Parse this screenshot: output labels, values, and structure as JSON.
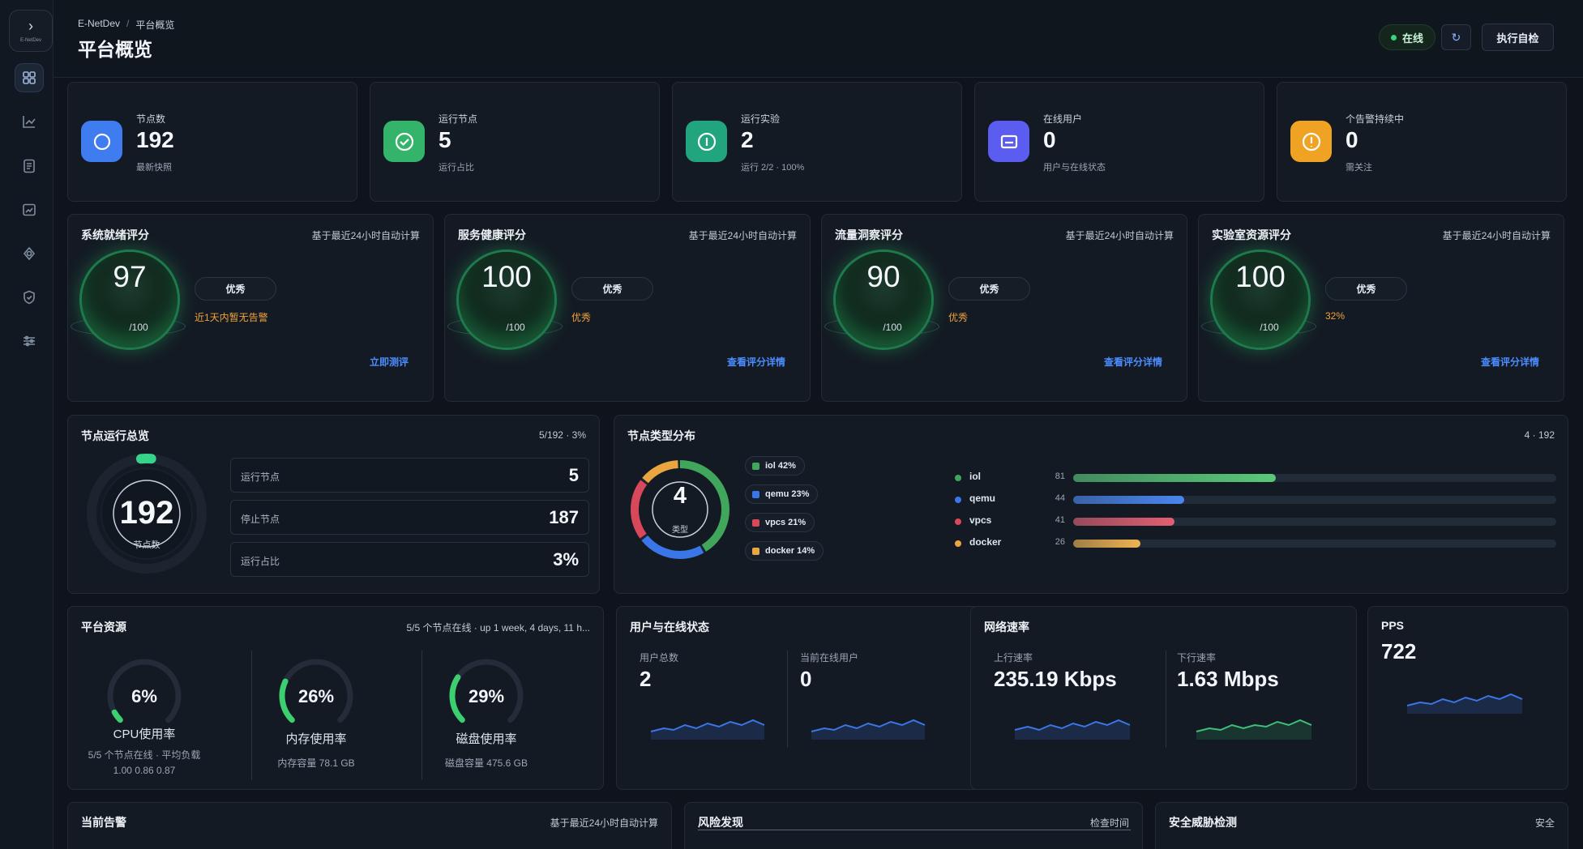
{
  "rail": {
    "logo_text": "E-NetDev"
  },
  "header": {
    "breadcrumb_root": "E-NetDev",
    "breadcrumb_sep": "/",
    "breadcrumb_current": "平台概览",
    "title": "平台概览",
    "status_label": "在线",
    "refresh_icon_glyph": "↻",
    "self_check_label": "执行自检"
  },
  "stats": [
    {
      "label": "节点数",
      "value": "192",
      "sub": "最新快照",
      "color": "#3f7cf0",
      "icon": "circle-icon"
    },
    {
      "label": "运行节点",
      "value": "5",
      "sub": "运行占比",
      "color": "#34b46a",
      "icon": "check-icon"
    },
    {
      "label": "运行实验",
      "value": "2",
      "sub": "运行 2/2 · 100%",
      "color": "#21a57e",
      "icon": "info-icon"
    },
    {
      "label": "在线用户",
      "value": "0",
      "sub": "用户与在线状态",
      "color": "#5b5cf0",
      "icon": "monitor-icon"
    },
    {
      "label": "个告警持续中",
      "value": "0",
      "sub": "需关注",
      "color": "#f0a323",
      "icon": "alert-icon"
    }
  ],
  "scores": [
    {
      "title": "系统就绪评分",
      "right": "基于最近24小时自动计算",
      "value": "97",
      "max": "/100",
      "grade": "优秀",
      "note": "近1天内暂无告警",
      "link": "立即测评"
    },
    {
      "title": "服务健康评分",
      "right": "基于最近24小时自动计算",
      "value": "100",
      "max": "/100",
      "grade": "优秀",
      "note": "优秀",
      "link": "查看评分详情"
    },
    {
      "title": "流量洞察评分",
      "right": "基于最近24小时自动计算",
      "value": "90",
      "max": "/100",
      "grade": "优秀",
      "note": "优秀",
      "link": "查看评分详情"
    },
    {
      "title": "实验室资源评分",
      "right": "基于最近24小时自动计算",
      "value": "100",
      "max": "/100",
      "grade": "优秀",
      "note": "32%",
      "link": "查看评分详情"
    }
  ],
  "node_overview": {
    "title": "节点运行总览",
    "right": "5/192 · 3%",
    "total": "192",
    "total_label": "节点数",
    "running_fraction": 0.03,
    "rows": [
      {
        "label": "运行节点",
        "value": "5"
      },
      {
        "label": "停止节点",
        "value": "187"
      },
      {
        "label": "运行占比",
        "value": "3%"
      }
    ]
  },
  "node_types": {
    "title": "节点类型分布",
    "right": "4 · 192",
    "center_value": "4",
    "center_label": "类型",
    "items": [
      {
        "name": "iol",
        "count": "81",
        "pct": "42%",
        "share": 0.42,
        "color": "#3fa65b",
        "badge": "iol  42%",
        "bar_color": "#59c978"
      },
      {
        "name": "qemu",
        "count": "44",
        "pct": "23%",
        "share": 0.23,
        "color": "#3b76e8",
        "badge": "qemu  23%",
        "bar_color": "#4a86ee"
      },
      {
        "name": "vpcs",
        "count": "41",
        "pct": "21%",
        "share": 0.21,
        "color": "#d9475b",
        "badge": "vpcs  21%",
        "bar_color": "#e35f72"
      },
      {
        "name": "docker",
        "count": "26",
        "pct": "14%",
        "share": 0.14,
        "color": "#e9a640",
        "badge": "docker  14%",
        "bar_color": "#f0b451"
      }
    ]
  },
  "platform": {
    "title": "平台资源",
    "right": "5/5 个节点在线 · up 1 week, 4 days, 11 h...",
    "gauges": [
      {
        "pct": "6%",
        "value": 0.06,
        "label": "CPU使用率",
        "sub1": "5/5 个节点在线 · 平均负载",
        "sub2": "1.00 0.86 0.87"
      },
      {
        "pct": "26%",
        "value": 0.26,
        "label": "内存使用率",
        "sub1": "内存容量 78.1 GB",
        "sub2": ""
      },
      {
        "pct": "29%",
        "value": 0.29,
        "label": "磁盘使用率",
        "sub1": "磁盘容量 475.6 GB",
        "sub2": ""
      }
    ]
  },
  "users": {
    "title": "用户与在线状态",
    "total_label": "用户总数",
    "total_value": "2",
    "online_label": "当前在线用户",
    "online_value": "0"
  },
  "network": {
    "title": "网络速率",
    "up_label": "上行速率",
    "up_value": "235.19 Kbps",
    "down_label": "下行速率",
    "down_value": "1.63 Mbps"
  },
  "pps": {
    "title": "PPS",
    "value": "722"
  },
  "bottom": {
    "alerts_title": "当前告警",
    "alerts_right": "基于最近24小时自动计算",
    "risk_title": "风险发现",
    "risk_right": "检查时间",
    "threat_title": "安全威胁检测",
    "threat_right": "安全"
  }
}
